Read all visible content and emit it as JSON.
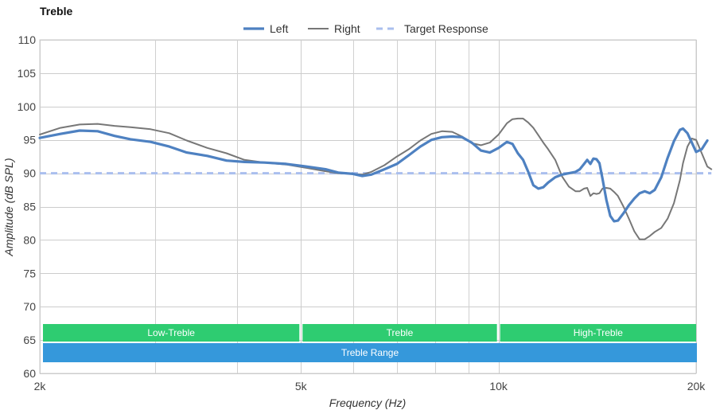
{
  "chart_data": {
    "type": "line",
    "title": "Treble",
    "xlabel": "Frequency (Hz)",
    "ylabel": "Amplitude (dB SPL)",
    "x_scale": "log",
    "xlim": [
      2000,
      20000
    ],
    "ylim": [
      60,
      110
    ],
    "x_ticks": [
      {
        "value": 2000,
        "label": "2k"
      },
      {
        "value": 5000,
        "label": "5k"
      },
      {
        "value": 10000,
        "label": "10k"
      },
      {
        "value": 20000,
        "label": "20k"
      }
    ],
    "x_minor_grid": [
      3000,
      4000,
      6000,
      7000,
      8000,
      9000
    ],
    "y_ticks": [
      "60",
      "65",
      "70",
      "75",
      "80",
      "85",
      "90",
      "95",
      "100",
      "105",
      "110"
    ],
    "grid": true,
    "legend_position": "top-center",
    "series": [
      {
        "name": "Left",
        "color": "#4e81c1",
        "style": "solid-thick",
        "points": [
          [
            2000,
            95.3
          ],
          [
            2150,
            95.9
          ],
          [
            2300,
            96.4
          ],
          [
            2450,
            96.3
          ],
          [
            2600,
            95.6
          ],
          [
            2750,
            95.1
          ],
          [
            2950,
            94.7
          ],
          [
            3150,
            94.0
          ],
          [
            3350,
            93.1
          ],
          [
            3600,
            92.6
          ],
          [
            3850,
            91.9
          ],
          [
            4100,
            91.7
          ],
          [
            4400,
            91.6
          ],
          [
            4750,
            91.4
          ],
          [
            5100,
            91.0
          ],
          [
            5450,
            90.6
          ],
          [
            5700,
            90.1
          ],
          [
            6000,
            89.9
          ],
          [
            6200,
            89.6
          ],
          [
            6400,
            89.8
          ],
          [
            6700,
            90.6
          ],
          [
            7000,
            91.4
          ],
          [
            7300,
            92.7
          ],
          [
            7600,
            94.0
          ],
          [
            7900,
            95.0
          ],
          [
            8200,
            95.4
          ],
          [
            8500,
            95.5
          ],
          [
            8800,
            95.4
          ],
          [
            9100,
            94.6
          ],
          [
            9400,
            93.4
          ],
          [
            9700,
            93.1
          ],
          [
            10000,
            93.8
          ],
          [
            10300,
            94.7
          ],
          [
            10500,
            94.4
          ],
          [
            10700,
            93.0
          ],
          [
            10900,
            92.0
          ],
          [
            11100,
            90.2
          ],
          [
            11300,
            88.2
          ],
          [
            11500,
            87.7
          ],
          [
            11700,
            87.9
          ],
          [
            11900,
            88.6
          ],
          [
            12200,
            89.4
          ],
          [
            12500,
            89.8
          ],
          [
            12800,
            90.0
          ],
          [
            13100,
            90.2
          ],
          [
            13300,
            90.6
          ],
          [
            13500,
            91.4
          ],
          [
            13650,
            92.0
          ],
          [
            13800,
            91.4
          ],
          [
            13950,
            92.2
          ],
          [
            14100,
            92.1
          ],
          [
            14250,
            91.5
          ],
          [
            14400,
            89.2
          ],
          [
            14600,
            86.0
          ],
          [
            14800,
            83.6
          ],
          [
            15000,
            82.8
          ],
          [
            15200,
            82.9
          ],
          [
            15500,
            84.0
          ],
          [
            15800,
            85.2
          ],
          [
            16100,
            86.2
          ],
          [
            16400,
            87.0
          ],
          [
            16700,
            87.3
          ],
          [
            17000,
            87.0
          ],
          [
            17300,
            87.5
          ],
          [
            17700,
            89.4
          ],
          [
            18100,
            92.3
          ],
          [
            18500,
            94.8
          ],
          [
            18900,
            96.5
          ],
          [
            19100,
            96.7
          ],
          [
            19400,
            96.0
          ],
          [
            19700,
            94.6
          ],
          [
            20000,
            93.2
          ],
          [
            20400,
            93.6
          ],
          [
            20800,
            94.9
          ]
        ]
      },
      {
        "name": "Right",
        "color": "#777777",
        "style": "solid-thin",
        "points": [
          [
            2000,
            95.8
          ],
          [
            2150,
            96.8
          ],
          [
            2300,
            97.3
          ],
          [
            2450,
            97.4
          ],
          [
            2600,
            97.1
          ],
          [
            2750,
            96.9
          ],
          [
            2950,
            96.6
          ],
          [
            3150,
            96.0
          ],
          [
            3350,
            94.9
          ],
          [
            3600,
            93.8
          ],
          [
            3850,
            93.0
          ],
          [
            4100,
            92.0
          ],
          [
            4400,
            91.6
          ],
          [
            4750,
            91.3
          ],
          [
            5100,
            90.8
          ],
          [
            5450,
            90.3
          ],
          [
            5700,
            90.0
          ],
          [
            6000,
            89.9
          ],
          [
            6200,
            89.8
          ],
          [
            6400,
            90.2
          ],
          [
            6700,
            91.2
          ],
          [
            7000,
            92.5
          ],
          [
            7300,
            93.6
          ],
          [
            7600,
            94.9
          ],
          [
            7900,
            95.9
          ],
          [
            8200,
            96.3
          ],
          [
            8500,
            96.2
          ],
          [
            8800,
            95.5
          ],
          [
            9100,
            94.5
          ],
          [
            9400,
            94.2
          ],
          [
            9700,
            94.6
          ],
          [
            10000,
            95.8
          ],
          [
            10300,
            97.5
          ],
          [
            10500,
            98.1
          ],
          [
            10700,
            98.2
          ],
          [
            10900,
            98.2
          ],
          [
            11100,
            97.6
          ],
          [
            11300,
            96.8
          ],
          [
            11500,
            95.7
          ],
          [
            11700,
            94.6
          ],
          [
            11900,
            93.6
          ],
          [
            12200,
            92.0
          ],
          [
            12500,
            89.5
          ],
          [
            12800,
            88.0
          ],
          [
            13100,
            87.3
          ],
          [
            13300,
            87.3
          ],
          [
            13500,
            87.7
          ],
          [
            13650,
            87.8
          ],
          [
            13800,
            86.6
          ],
          [
            13950,
            87.0
          ],
          [
            14100,
            86.9
          ],
          [
            14250,
            87.0
          ],
          [
            14400,
            87.7
          ],
          [
            14600,
            87.8
          ],
          [
            14800,
            87.7
          ],
          [
            15000,
            87.2
          ],
          [
            15200,
            86.6
          ],
          [
            15500,
            85.0
          ],
          [
            15800,
            83.2
          ],
          [
            16100,
            81.3
          ],
          [
            16400,
            80.1
          ],
          [
            16700,
            80.1
          ],
          [
            17000,
            80.6
          ],
          [
            17300,
            81.2
          ],
          [
            17700,
            81.8
          ],
          [
            18100,
            83.2
          ],
          [
            18500,
            85.5
          ],
          [
            18900,
            89.0
          ],
          [
            19100,
            91.5
          ],
          [
            19400,
            94.0
          ],
          [
            19700,
            95.2
          ],
          [
            20000,
            95.0
          ],
          [
            20400,
            93.0
          ],
          [
            20800,
            91.0
          ],
          [
            21100,
            90.6
          ]
        ]
      },
      {
        "name": "Target Response",
        "color": "#aabfee",
        "style": "dashed",
        "points": [
          [
            2000,
            90.0
          ],
          [
            21100,
            90.0
          ]
        ]
      }
    ],
    "bands": [
      {
        "label": "Low-Treble",
        "from": 2000,
        "to": 5000,
        "color": "#2ecc71"
      },
      {
        "label": "Treble",
        "from": 5000,
        "to": 10000,
        "color": "#2ecc71"
      },
      {
        "label": "High-Treble",
        "from": 10000,
        "to": 20000,
        "color": "#2ecc71"
      },
      {
        "label": "Treble Range",
        "from": 2000,
        "to": 20000,
        "color": "#3598db"
      }
    ]
  }
}
